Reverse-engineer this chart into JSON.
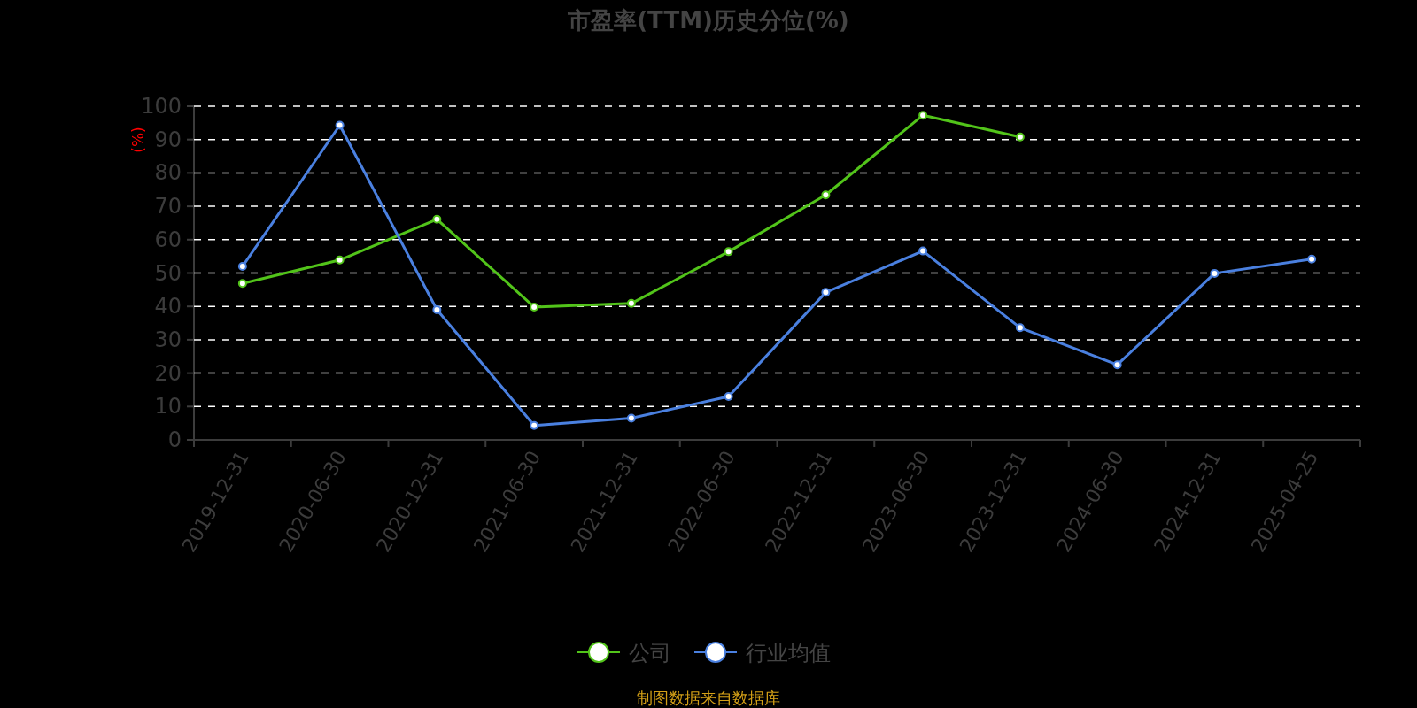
{
  "chart_data": {
    "type": "line",
    "title": "市盈率(TTM)历史分位(%)",
    "ylabel": "(%)",
    "categories": [
      "2019-12-31",
      "2020-06-30",
      "2020-12-31",
      "2021-06-30",
      "2021-12-31",
      "2022-06-30",
      "2022-12-31",
      "2023-06-30",
      "2023-12-31",
      "2024-06-30",
      "2024-12-31",
      "2025-04-25"
    ],
    "series": [
      {
        "name": "公司",
        "color": "#52c41a",
        "values": [
          46.9,
          53.9,
          66.1,
          39.8,
          40.9,
          56.4,
          73.4,
          97.3,
          90.8,
          null,
          null,
          null
        ]
      },
      {
        "name": "行业均值",
        "color": "#4a80e0",
        "values": [
          52.0,
          94.3,
          39.0,
          4.3,
          6.5,
          13.0,
          44.2,
          56.6,
          33.6,
          22.5,
          49.9,
          54.2
        ]
      }
    ],
    "ylim": [
      0,
      100
    ],
    "yticks": [
      0,
      10,
      20,
      30,
      40,
      50,
      60,
      70,
      80,
      90,
      100
    ],
    "grid": "y",
    "legend": "bottom",
    "marker": "circle",
    "line_style": "solid",
    "annotations": [
      "制图数据来自数据库"
    ]
  }
}
